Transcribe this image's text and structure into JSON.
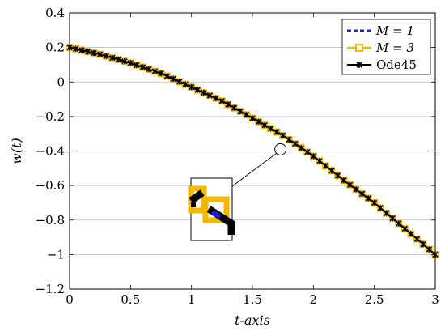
{
  "chart_data": {
    "type": "line",
    "xlabel": "t-axis",
    "ylabel": "w(t)",
    "xlim": [
      0,
      3
    ],
    "ylim": [
      -1.2,
      0.4
    ],
    "x_ticks": [
      "0",
      "0.5",
      "1",
      "1.5",
      "2",
      "2.5",
      "3"
    ],
    "x_tick_values": [
      0,
      0.5,
      1,
      1.5,
      2,
      2.5,
      3
    ],
    "y_ticks": [
      "0.4",
      "0.2",
      "0",
      "−0.2",
      "−0.4",
      "−0.6",
      "−0.8",
      "−1",
      "−1.2"
    ],
    "y_tick_values": [
      0.4,
      0.2,
      0,
      -0.2,
      -0.4,
      -0.6,
      -0.8,
      -1,
      -1.2
    ],
    "grid": "horizontal",
    "legend_position": "top-right",
    "series": [
      {
        "name": "M = 1",
        "color": "#1f1fd6",
        "style": "dashed",
        "x": [
          0,
          0.25,
          0.5,
          0.75,
          1.0,
          1.25,
          1.5,
          1.75,
          2.0,
          2.25,
          2.5,
          2.75,
          3.0
        ],
        "values": [
          0.2,
          0.16,
          0.11,
          0.05,
          -0.03,
          -0.11,
          -0.21,
          -0.31,
          -0.43,
          -0.57,
          -0.7,
          -0.85,
          -1.0
        ]
      },
      {
        "name": "M = 3",
        "color": "#f5b800",
        "style": "solid-square",
        "x": [
          0,
          0.25,
          0.5,
          0.75,
          1.0,
          1.25,
          1.5,
          1.75,
          2.0,
          2.25,
          2.5,
          2.75,
          3.0
        ],
        "values": [
          0.2,
          0.16,
          0.11,
          0.05,
          -0.03,
          -0.11,
          -0.21,
          -0.31,
          -0.43,
          -0.57,
          -0.7,
          -0.85,
          -1.0
        ]
      },
      {
        "name": "Ode45",
        "color": "#000000",
        "style": "solid-star",
        "x": [
          0,
          0.25,
          0.5,
          0.75,
          1.0,
          1.25,
          1.5,
          1.75,
          2.0,
          2.25,
          2.5,
          2.75,
          3.0
        ],
        "values": [
          0.2,
          0.16,
          0.11,
          0.05,
          -0.03,
          -0.11,
          -0.21,
          -0.31,
          -0.43,
          -0.57,
          -0.7,
          -0.85,
          -1.0
        ]
      }
    ],
    "zoom_point": {
      "x": 1.73,
      "y": -0.39
    }
  }
}
